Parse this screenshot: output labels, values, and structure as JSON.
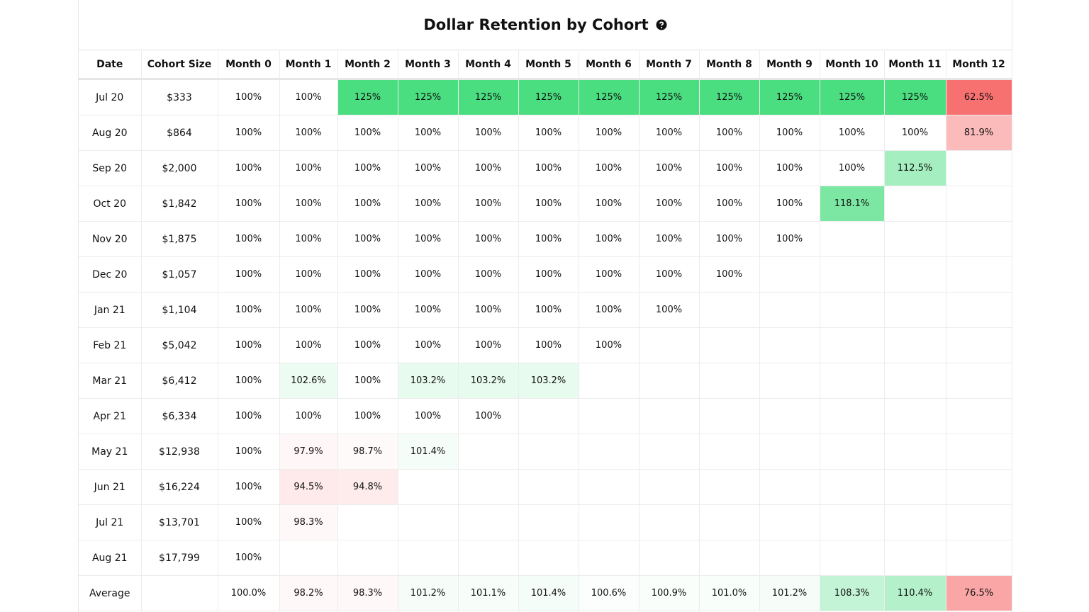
{
  "title": "Dollar Retention by Cohort",
  "table": {
    "headers": [
      "Date",
      "Cohort Size",
      "Month 0",
      "Month 1",
      "Month 2",
      "Month 3",
      "Month 4",
      "Month 5",
      "Month 6",
      "Month 7",
      "Month 8",
      "Month 9",
      "Month 10",
      "Month 11",
      "Month 12"
    ],
    "rows": [
      {
        "date": "Jul 20",
        "size": "$333",
        "values": [
          "100%",
          "100%",
          "125%",
          "125%",
          "125%",
          "125%",
          "125%",
          "125%",
          "125%",
          "125%",
          "125%",
          "125%",
          "62.5%"
        ]
      },
      {
        "date": "Aug 20",
        "size": "$864",
        "values": [
          "100%",
          "100%",
          "100%",
          "100%",
          "100%",
          "100%",
          "100%",
          "100%",
          "100%",
          "100%",
          "100%",
          "100%",
          "81.9%"
        ]
      },
      {
        "date": "Sep 20",
        "size": "$2,000",
        "values": [
          "100%",
          "100%",
          "100%",
          "100%",
          "100%",
          "100%",
          "100%",
          "100%",
          "100%",
          "100%",
          "100%",
          "112.5%"
        ]
      },
      {
        "date": "Oct 20",
        "size": "$1,842",
        "values": [
          "100%",
          "100%",
          "100%",
          "100%",
          "100%",
          "100%",
          "100%",
          "100%",
          "100%",
          "100%",
          "118.1%"
        ]
      },
      {
        "date": "Nov 20",
        "size": "$1,875",
        "values": [
          "100%",
          "100%",
          "100%",
          "100%",
          "100%",
          "100%",
          "100%",
          "100%",
          "100%",
          "100%"
        ]
      },
      {
        "date": "Dec 20",
        "size": "$1,057",
        "values": [
          "100%",
          "100%",
          "100%",
          "100%",
          "100%",
          "100%",
          "100%",
          "100%",
          "100%"
        ]
      },
      {
        "date": "Jan 21",
        "size": "$1,104",
        "values": [
          "100%",
          "100%",
          "100%",
          "100%",
          "100%",
          "100%",
          "100%",
          "100%"
        ]
      },
      {
        "date": "Feb 21",
        "size": "$5,042",
        "values": [
          "100%",
          "100%",
          "100%",
          "100%",
          "100%",
          "100%",
          "100%"
        ]
      },
      {
        "date": "Mar 21",
        "size": "$6,412",
        "values": [
          "100%",
          "102.6%",
          "100%",
          "103.2%",
          "103.2%",
          "103.2%"
        ]
      },
      {
        "date": "Apr 21",
        "size": "$6,334",
        "values": [
          "100%",
          "100%",
          "100%",
          "100%",
          "100%"
        ]
      },
      {
        "date": "May 21",
        "size": "$12,938",
        "values": [
          "100%",
          "97.9%",
          "98.7%",
          "101.4%"
        ]
      },
      {
        "date": "Jun 21",
        "size": "$16,224",
        "values": [
          "100%",
          "94.5%",
          "94.8%"
        ]
      },
      {
        "date": "Jul 21",
        "size": "$13,701",
        "values": [
          "100%",
          "98.3%"
        ]
      },
      {
        "date": "Aug 21",
        "size": "$17,799",
        "values": [
          "100%"
        ]
      }
    ],
    "average": {
      "label": "Average",
      "values": [
        "100.0%",
        "98.2%",
        "98.3%",
        "101.2%",
        "101.1%",
        "101.4%",
        "100.6%",
        "100.9%",
        "101.0%",
        "101.2%",
        "108.3%",
        "110.4%",
        "76.5%"
      ]
    }
  }
}
